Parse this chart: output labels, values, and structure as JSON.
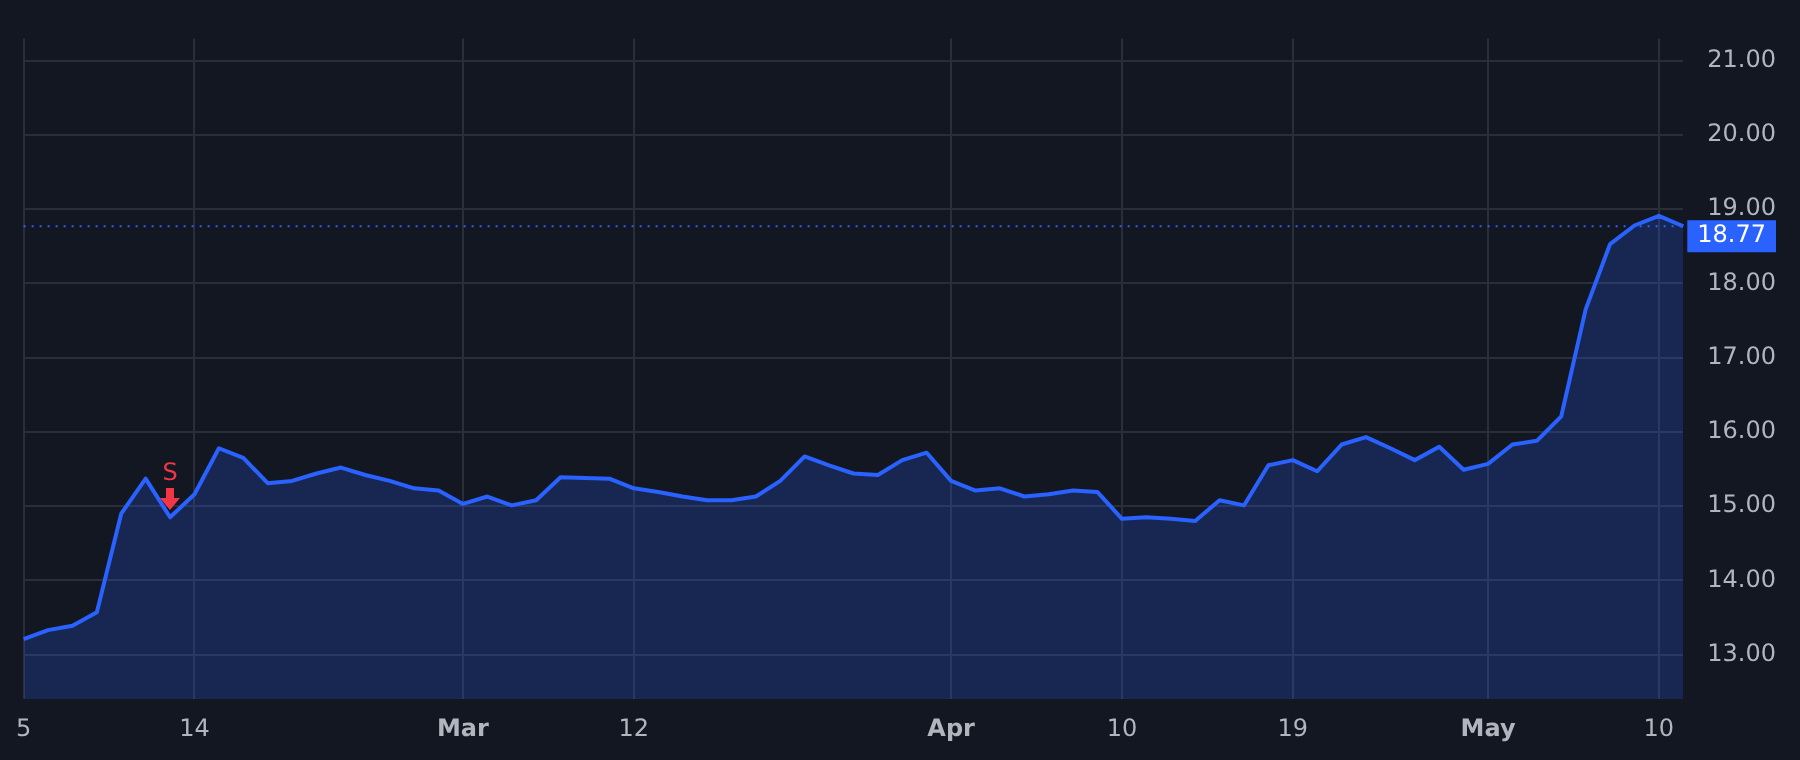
{
  "chart_data": {
    "type": "area",
    "categories": [
      "5",
      null,
      null,
      null,
      null,
      null,
      null,
      "14",
      null,
      null,
      null,
      null,
      null,
      null,
      null,
      null,
      null,
      null,
      "Mar",
      null,
      null,
      null,
      null,
      null,
      null,
      "12",
      null,
      null,
      null,
      null,
      null,
      null,
      null,
      null,
      null,
      null,
      null,
      null,
      "Apr",
      null,
      null,
      null,
      null,
      null,
      null,
      "10",
      null,
      null,
      null,
      null,
      null,
      null,
      "19",
      null,
      null,
      null,
      null,
      null,
      null,
      null,
      "May",
      null,
      null,
      null,
      null,
      null,
      null,
      "10",
      null
    ],
    "series": [
      {
        "color": "#2962ff",
        "values": [
          13.21,
          13.33,
          13.39,
          13.57,
          14.9,
          15.37,
          14.85,
          15.16,
          15.78,
          15.65,
          15.31,
          15.34,
          15.44,
          15.52,
          15.42,
          15.34,
          15.24,
          15.21,
          15.03,
          15.13,
          15.01,
          15.08,
          15.39,
          15.38,
          15.37,
          15.24,
          15.19,
          15.13,
          15.08,
          15.08,
          15.13,
          15.34,
          15.67,
          15.55,
          15.44,
          15.42,
          15.62,
          15.72,
          15.34,
          15.21,
          15.24,
          15.13,
          15.16,
          15.21,
          15.19,
          14.83,
          14.85,
          14.83,
          14.8,
          15.08,
          15.01,
          15.55,
          15.62,
          15.47,
          15.83,
          15.93,
          15.78,
          15.62,
          15.8,
          15.49,
          15.57,
          15.83,
          15.88,
          16.21,
          17.65,
          18.53,
          18.78,
          18.91,
          18.77
        ]
      }
    ],
    "ylim": [
      12.4,
      21.3
    ],
    "yticks": [
      {
        "value": 13,
        "label": "13.00"
      },
      {
        "value": 14,
        "label": "14.00"
      },
      {
        "value": 15,
        "label": "15.00"
      },
      {
        "value": 16,
        "label": "16.00"
      },
      {
        "value": 17,
        "label": "17.00"
      },
      {
        "value": 18,
        "label": "18.00"
      },
      {
        "value": 19,
        "label": "19.00"
      },
      {
        "value": 20,
        "label": "20.00"
      },
      {
        "value": 21,
        "label": "21.00"
      }
    ],
    "ref_lines": [
      {
        "axis": "y",
        "value": 18.77,
        "label": "18.77",
        "color": "#2962ff",
        "line_style": "dotted"
      }
    ],
    "annotations": [
      {
        "text": "S",
        "y": 14.85
      }
    ],
    "grid": true,
    "marker": "none",
    "line_style": "solid",
    "legend": false
  }
}
